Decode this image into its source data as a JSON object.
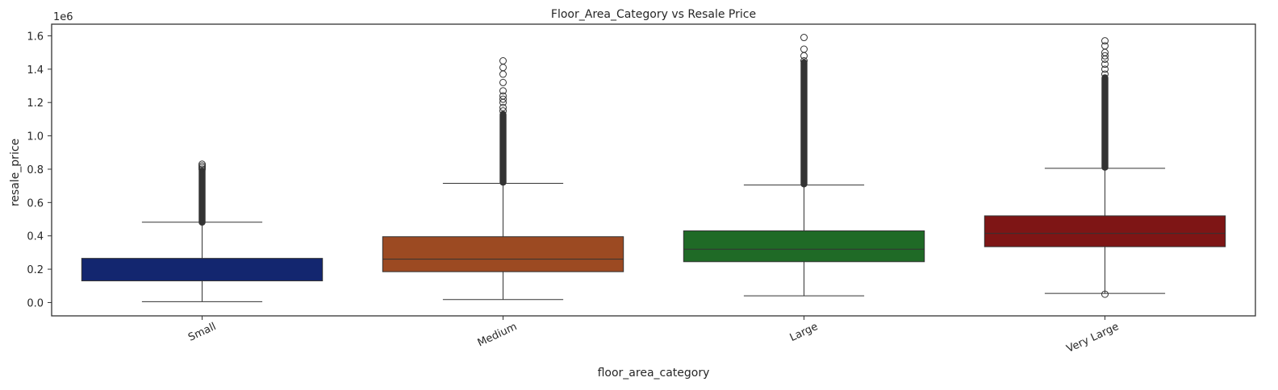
{
  "chart_data": {
    "type": "box",
    "title": "Floor_Area_Category vs Resale Price",
    "xlabel": "floor_area_category",
    "ylabel": "resale_price",
    "y_offset_label": "1e6",
    "ylim": [
      -0.08,
      1.67
    ],
    "y_ticks": [
      {
        "value": 0.0,
        "label": "0.0"
      },
      {
        "value": 0.2,
        "label": "0.2"
      },
      {
        "value": 0.4,
        "label": "0.4"
      },
      {
        "value": 0.6,
        "label": "0.6"
      },
      {
        "value": 0.8,
        "label": "0.8"
      },
      {
        "value": 1.0,
        "label": "1.0"
      },
      {
        "value": 1.2,
        "label": "1.2"
      },
      {
        "value": 1.4,
        "label": "1.4"
      },
      {
        "value": 1.6,
        "label": "1.6"
      }
    ],
    "grid": false,
    "categories": [
      "Small",
      "Medium",
      "Large",
      "Very Large"
    ],
    "boxes": [
      {
        "category": "Small",
        "color": "#13266f",
        "whisker_low": 0.005,
        "q1": 0.13,
        "median": 0.13,
        "q3": 0.265,
        "whisker_high": 0.482,
        "outliers": [
          0.83,
          0.82,
          0.81,
          0.8
        ],
        "outlier_band": [
          0.48,
          0.79
        ]
      },
      {
        "category": "Medium",
        "color": "#9c4a22",
        "whisker_low": 0.018,
        "q1": 0.185,
        "median": 0.26,
        "q3": 0.395,
        "whisker_high": 0.715,
        "outliers": [
          1.45,
          1.41,
          1.37,
          1.32,
          1.27,
          1.24,
          1.22,
          1.2,
          1.17,
          1.15
        ],
        "outlier_band": [
          0.72,
          1.13
        ]
      },
      {
        "category": "Large",
        "color": "#1f6a26",
        "whisker_low": 0.04,
        "q1": 0.245,
        "median": 0.32,
        "q3": 0.43,
        "whisker_high": 0.705,
        "outliers": [
          1.59,
          1.52,
          1.48,
          1.45
        ],
        "outlier_band": [
          0.71,
          1.44
        ]
      },
      {
        "category": "Very Large",
        "color": "#7e1515",
        "whisker_low": 0.055,
        "q1": 0.335,
        "median": 0.415,
        "q3": 0.52,
        "whisker_high": 0.805,
        "outliers": [
          1.57,
          1.54,
          1.5,
          1.48,
          1.46,
          1.43,
          1.4,
          1.37
        ],
        "outlier_band": [
          0.81,
          1.35
        ],
        "low_outliers": [
          0.05
        ]
      }
    ]
  }
}
